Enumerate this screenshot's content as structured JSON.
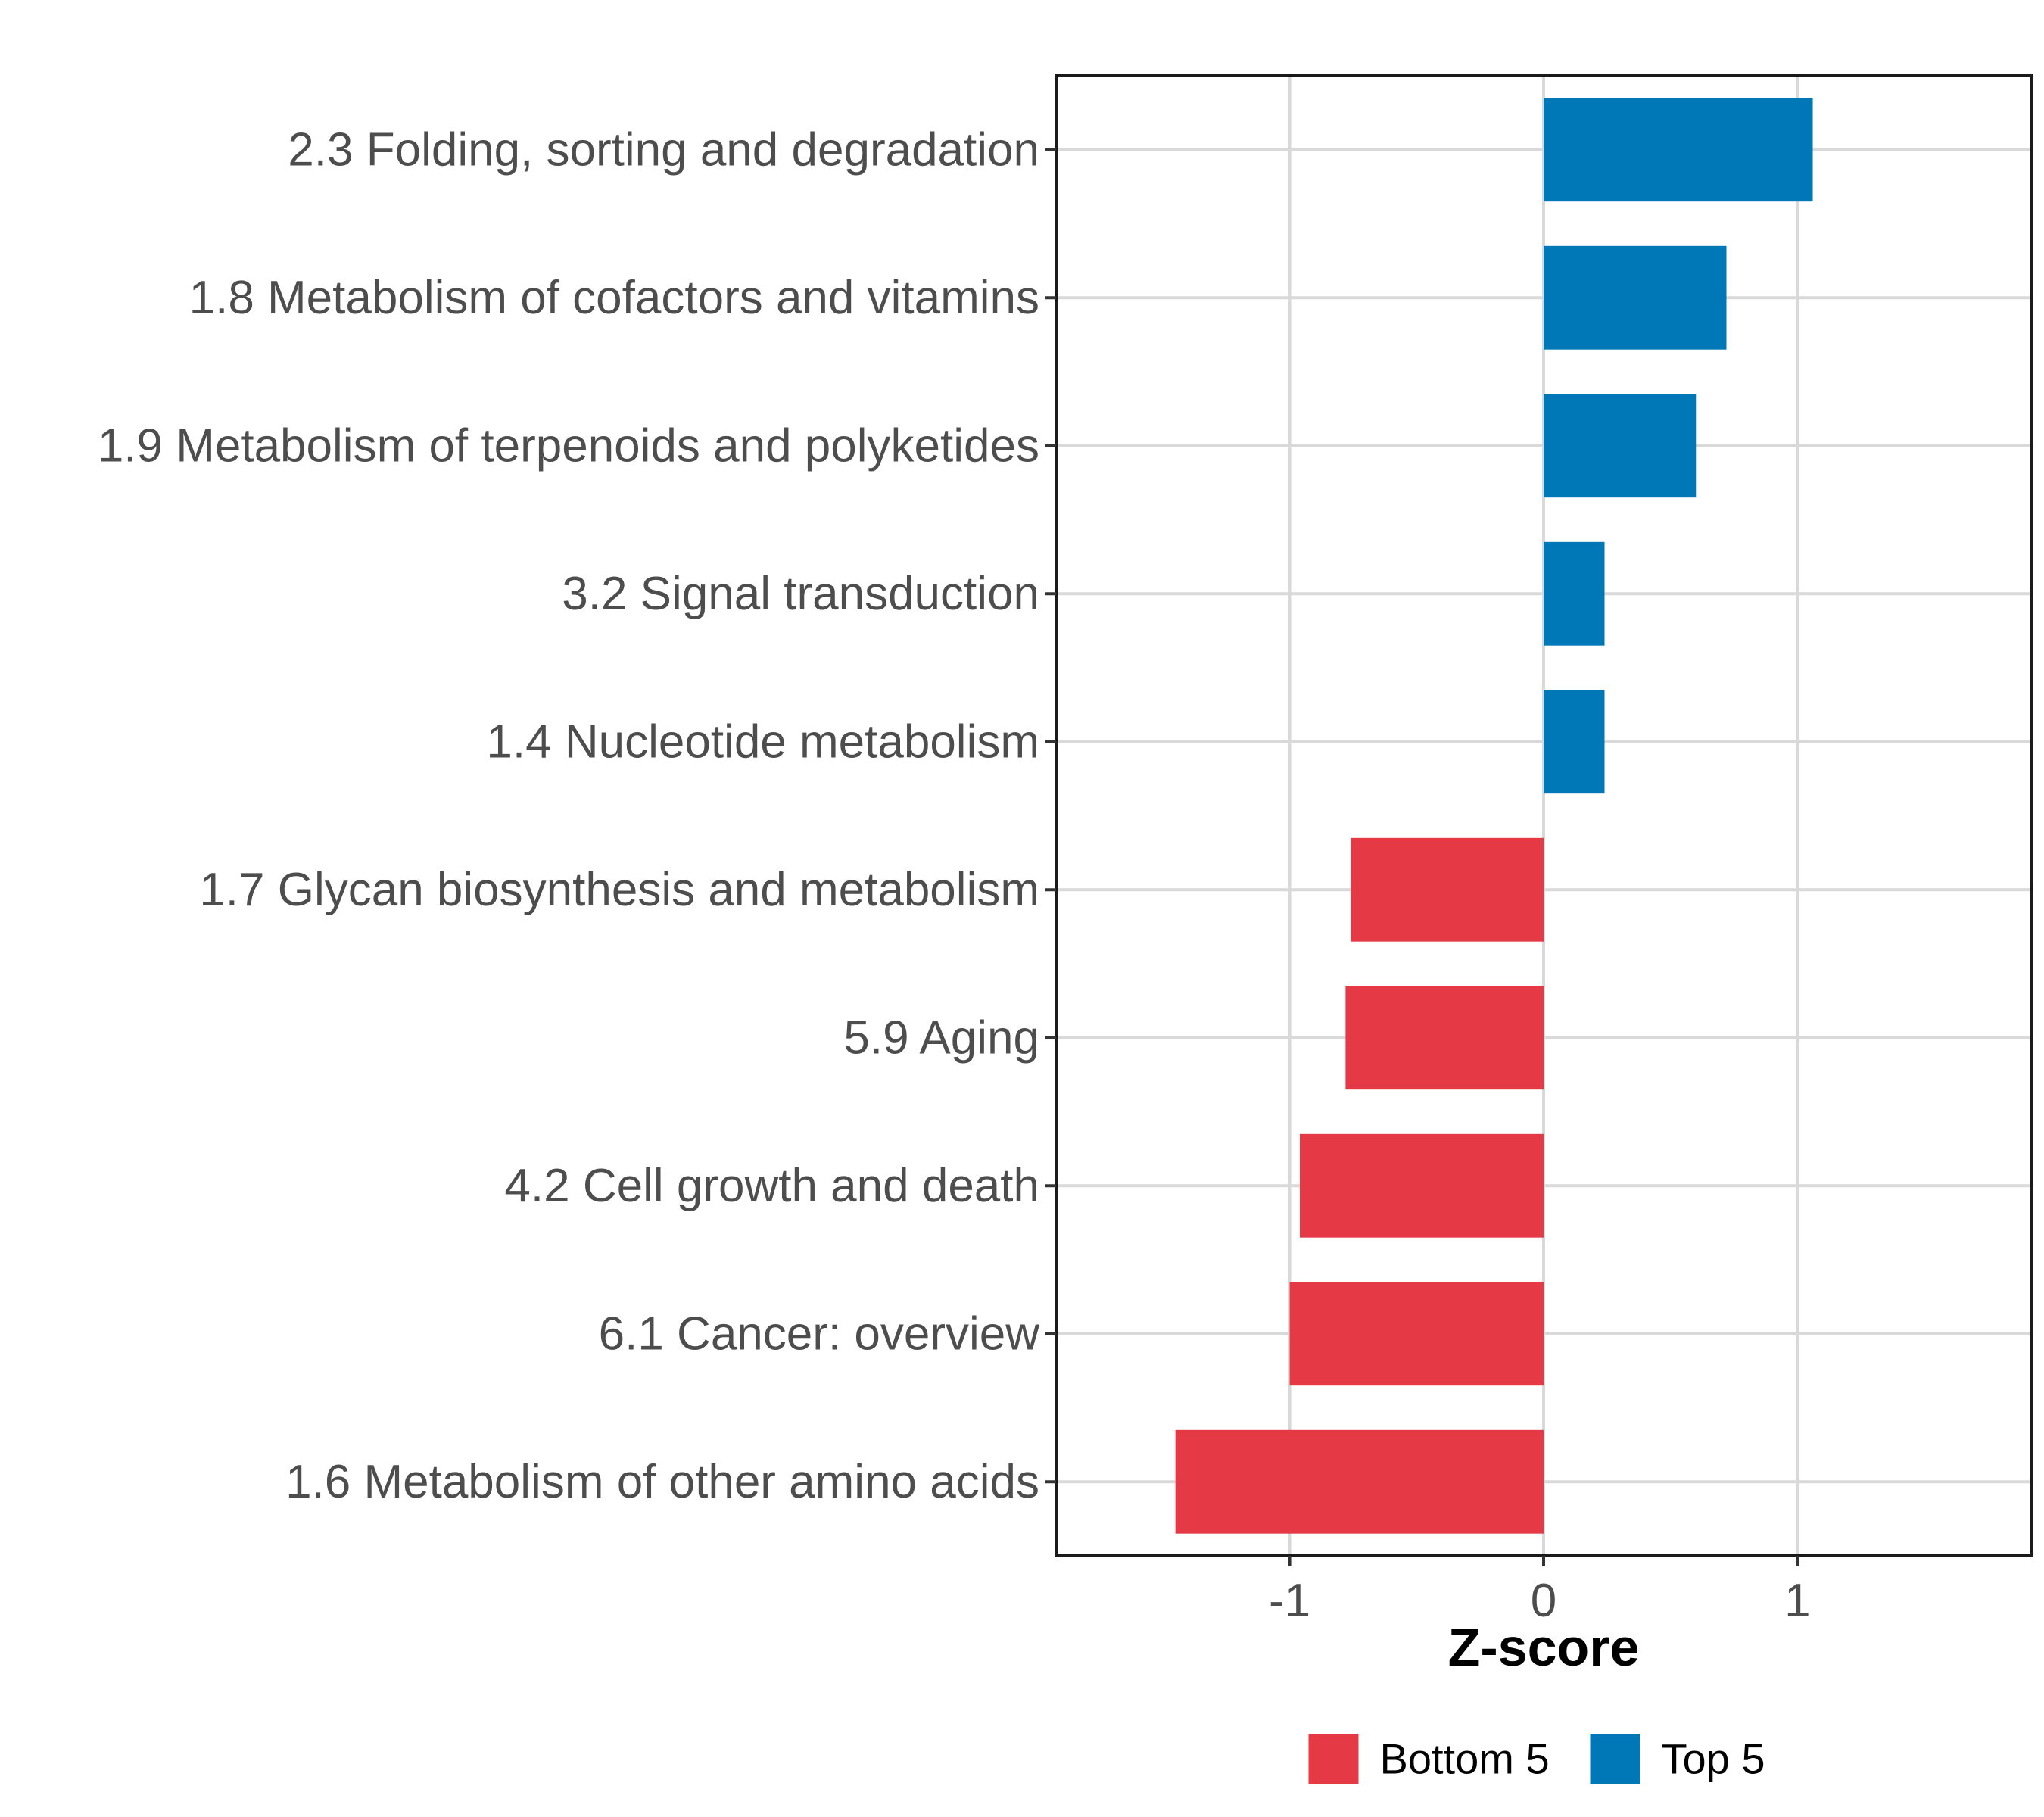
{
  "chart_data": {
    "type": "bar",
    "orientation": "horizontal",
    "title": "",
    "xlabel": "Z-score",
    "ylabel": "",
    "xlim": [
      -1.92,
      1.92
    ],
    "xticks": [
      -1,
      0,
      1
    ],
    "xtick_labels": [
      "-1",
      "0",
      "1"
    ],
    "grid": true,
    "legend_position": "bottom",
    "categories": [
      "2.3 Folding, sorting and degradation",
      "1.8 Metabolism of cofactors and vitamins",
      "1.9 Metabolism of terpenoids and polyketides",
      "3.2 Signal transduction",
      "1.4 Nucleotide metabolism",
      "1.7 Glycan biosynthesis and metabolism",
      "5.9 Aging",
      "4.2 Cell growth and death",
      "6.1 Cancer: overview",
      "1.6 Metabolism of other amino acids"
    ],
    "values": [
      1.06,
      0.72,
      0.6,
      0.24,
      0.24,
      -0.76,
      -0.78,
      -0.96,
      -1.0,
      -1.45
    ],
    "groups": [
      "Top 5",
      "Top 5",
      "Top 5",
      "Top 5",
      "Top 5",
      "Bottom 5",
      "Bottom 5",
      "Bottom 5",
      "Bottom 5",
      "Bottom 5"
    ],
    "legend": [
      {
        "name": "Bottom 5",
        "color": "#e63946"
      },
      {
        "name": "Top 5",
        "color": "#0077b6"
      }
    ]
  }
}
